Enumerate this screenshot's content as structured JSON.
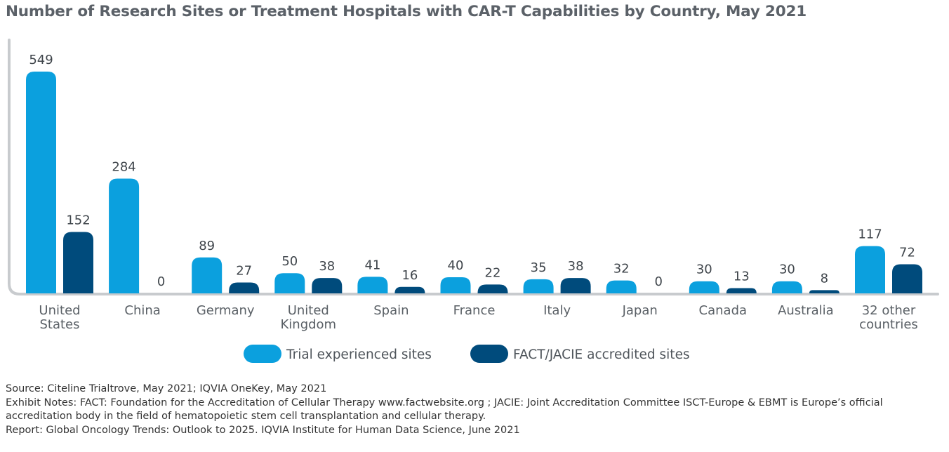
{
  "title": "Number of Research Sites or Treatment Hospitals with CAR-T Capabilities by Country, May 2021",
  "chart_data": {
    "type": "bar",
    "title": "Number of Research Sites or Treatment Hospitals with CAR-T Capabilities by Country, May 2021",
    "categories": [
      [
        "United",
        "States"
      ],
      [
        "China"
      ],
      [
        "Germany"
      ],
      [
        "United",
        "Kingdom"
      ],
      [
        "Spain"
      ],
      [
        "France"
      ],
      [
        "Italy"
      ],
      [
        "Japan"
      ],
      [
        "Canada"
      ],
      [
        "Australia"
      ],
      [
        "32 other",
        "countries"
      ]
    ],
    "series": [
      {
        "name": "Trial experienced sites",
        "color": "#0ba0de",
        "values": [
          549,
          284,
          89,
          50,
          41,
          40,
          35,
          32,
          30,
          30,
          117
        ]
      },
      {
        "name": "FACT/JACIE accredited sites",
        "color": "#004b7c",
        "values": [
          152,
          0,
          27,
          38,
          16,
          22,
          38,
          0,
          13,
          8,
          72
        ]
      }
    ],
    "ylim": [
      0,
      549
    ],
    "grid": false,
    "legend": "bottom-center",
    "axis_color": "#c8cbce"
  },
  "notes": {
    "source": "Source: Citeline Trialtrove, May 2021; IQVIA OneKey, May 2021",
    "exhibit": "Exhibit Notes: FACT: Foundation for the Accreditation of Cellular Therapy www.factwebsite.org ; JACIE: Joint Accreditation Committee ISCT-Europe & EBMT  is Europe’s official accreditation body in the field of hematopoietic stem cell transplantation and cellular therapy.",
    "report": "Report: Global Oncology Trends: Outlook to 2025. IQVIA Institute for Human Data Science, June 2021"
  }
}
